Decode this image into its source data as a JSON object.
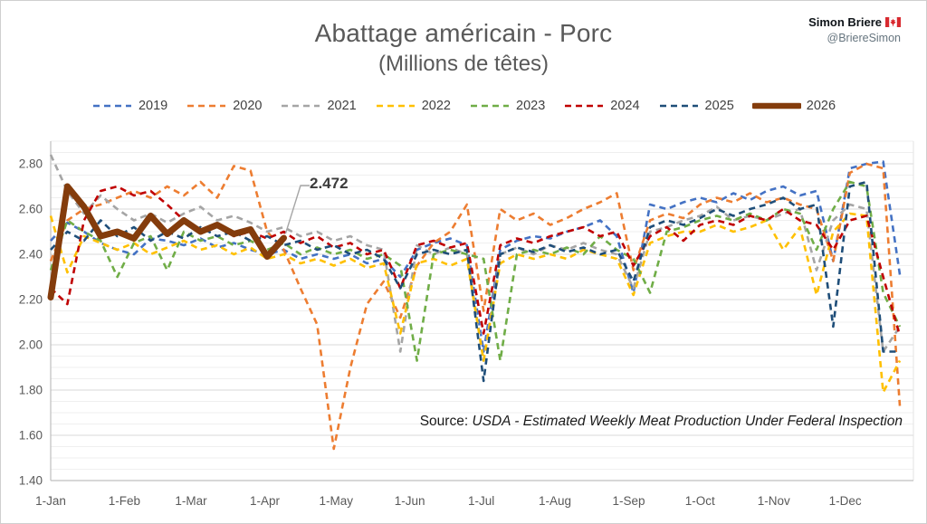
{
  "header": {
    "title": "Abattage américain - Porc",
    "subtitle": "(Millions de têtes)",
    "author": "Simon Briere",
    "handle": "@BriereSimon"
  },
  "annotation": {
    "label": "2.472"
  },
  "source": {
    "prefix": "Source: ",
    "text": "USDA - Estimated Weekly Meat Production Under Federal Inspection"
  },
  "chart_data": {
    "type": "line",
    "title": "Abattage américain - Porc (Millions de têtes)",
    "x_unit": "week_of_year",
    "ylim": [
      1.4,
      2.9
    ],
    "yticks": [
      1.4,
      1.6,
      1.8,
      2.0,
      2.2,
      2.4,
      2.6,
      2.8
    ],
    "grid_minor_step": 0.05,
    "grid": "horizontal major+minor",
    "legend_position": "top",
    "xticks": [
      {
        "label": "1-Jan",
        "day": 1
      },
      {
        "label": "1-Feb",
        "day": 32
      },
      {
        "label": "1-Mar",
        "day": 60
      },
      {
        "label": "1-Apr",
        "day": 91
      },
      {
        "label": "1-May",
        "day": 121
      },
      {
        "label": "1-Jun",
        "day": 152
      },
      {
        "label": "1-Jul",
        "day": 182
      },
      {
        "label": "1-Aug",
        "day": 213
      },
      {
        "label": "1-Sep",
        "day": 244
      },
      {
        "label": "1-Oct",
        "day": 274
      },
      {
        "label": "1-Nov",
        "day": 305
      },
      {
        "label": "1-Dec",
        "day": 335
      }
    ],
    "series": [
      {
        "name": "2019",
        "color": "#4472C4",
        "dash": "7 5",
        "width": 2.6,
        "values": [
          2.46,
          2.54,
          2.5,
          2.45,
          2.42,
          2.4,
          2.47,
          2.46,
          2.44,
          2.47,
          2.43,
          2.45,
          2.42,
          2.4,
          2.42,
          2.38,
          2.4,
          2.38,
          2.4,
          2.36,
          2.38,
          2.3,
          2.42,
          2.45,
          2.47,
          2.44,
          1.97,
          2.42,
          2.46,
          2.48,
          2.47,
          2.5,
          2.52,
          2.55,
          2.48,
          2.23,
          2.62,
          2.6,
          2.63,
          2.65,
          2.63,
          2.67,
          2.64,
          2.68,
          2.7,
          2.66,
          2.68,
          2.37,
          2.78,
          2.8,
          2.81,
          2.31
        ]
      },
      {
        "name": "2020",
        "color": "#ED7D31",
        "dash": "7 5",
        "width": 2.6,
        "values": [
          2.37,
          2.55,
          2.6,
          2.62,
          2.65,
          2.68,
          2.65,
          2.7,
          2.66,
          2.72,
          2.65,
          2.79,
          2.77,
          2.5,
          2.42,
          2.25,
          2.09,
          1.54,
          1.9,
          2.18,
          2.28,
          2.12,
          2.35,
          2.45,
          2.5,
          2.62,
          2.15,
          2.6,
          2.55,
          2.58,
          2.53,
          2.56,
          2.6,
          2.63,
          2.67,
          2.33,
          2.55,
          2.58,
          2.56,
          2.62,
          2.65,
          2.63,
          2.67,
          2.63,
          2.65,
          2.62,
          2.6,
          2.37,
          2.76,
          2.8,
          2.78,
          1.73
        ]
      },
      {
        "name": "2021",
        "color": "#A5A5A5",
        "dash": "7 5",
        "width": 2.6,
        "values": [
          2.84,
          2.68,
          2.58,
          2.66,
          2.6,
          2.55,
          2.58,
          2.54,
          2.58,
          2.61,
          2.55,
          2.57,
          2.54,
          2.5,
          2.52,
          2.48,
          2.5,
          2.46,
          2.48,
          2.44,
          2.42,
          1.97,
          2.44,
          2.4,
          2.43,
          2.4,
          1.93,
          2.4,
          2.43,
          2.4,
          2.44,
          2.42,
          2.45,
          2.42,
          2.4,
          2.25,
          2.5,
          2.52,
          2.55,
          2.57,
          2.61,
          2.55,
          2.57,
          2.55,
          2.58,
          2.6,
          2.33,
          2.55,
          2.62,
          2.6,
          1.97,
          2.08
        ]
      },
      {
        "name": "2022",
        "color": "#FFC000",
        "dash": "7 5",
        "width": 2.6,
        "values": [
          2.57,
          2.32,
          2.48,
          2.45,
          2.42,
          2.45,
          2.4,
          2.43,
          2.46,
          2.42,
          2.44,
          2.4,
          2.43,
          2.38,
          2.4,
          2.36,
          2.38,
          2.35,
          2.38,
          2.34,
          2.36,
          2.05,
          2.36,
          2.38,
          2.35,
          2.38,
          1.93,
          2.36,
          2.4,
          2.38,
          2.4,
          2.38,
          2.42,
          2.4,
          2.38,
          2.22,
          2.45,
          2.48,
          2.5,
          2.5,
          2.53,
          2.5,
          2.52,
          2.55,
          2.42,
          2.52,
          2.22,
          2.5,
          2.58,
          2.57,
          1.79,
          1.93
        ]
      },
      {
        "name": "2023",
        "color": "#70AD47",
        "dash": "7 5",
        "width": 2.6,
        "values": [
          2.33,
          2.55,
          2.5,
          2.46,
          2.3,
          2.45,
          2.48,
          2.33,
          2.5,
          2.46,
          2.48,
          2.44,
          2.46,
          2.42,
          2.45,
          2.4,
          2.43,
          2.4,
          2.42,
          2.38,
          2.4,
          2.35,
          1.93,
          2.4,
          2.42,
          2.4,
          2.38,
          1.93,
          2.4,
          2.42,
          2.4,
          2.43,
          2.4,
          2.48,
          2.42,
          2.38,
          2.23,
          2.5,
          2.52,
          2.55,
          2.57,
          2.55,
          2.58,
          2.55,
          2.6,
          2.58,
          2.42,
          2.6,
          2.72,
          2.7,
          2.23,
          2.08
        ]
      },
      {
        "name": "2024",
        "color": "#C00000",
        "dash": "7 5",
        "width": 2.6,
        "values": [
          2.25,
          2.18,
          2.55,
          2.68,
          2.7,
          2.66,
          2.68,
          2.62,
          2.55,
          2.5,
          2.53,
          2.48,
          2.5,
          2.47,
          2.5,
          2.45,
          2.48,
          2.43,
          2.45,
          2.4,
          2.42,
          2.25,
          2.44,
          2.46,
          2.43,
          2.45,
          2.05,
          2.44,
          2.47,
          2.45,
          2.48,
          2.5,
          2.52,
          2.48,
          2.5,
          2.35,
          2.48,
          2.52,
          2.46,
          2.53,
          2.55,
          2.53,
          2.57,
          2.55,
          2.6,
          2.55,
          2.53,
          2.42,
          2.55,
          2.57,
          2.3,
          2.04
        ]
      },
      {
        "name": "2025",
        "color": "#1F4E79",
        "dash": "7 5",
        "width": 2.6,
        "values": [
          2.42,
          2.5,
          2.46,
          2.55,
          2.48,
          2.52,
          2.46,
          2.5,
          2.47,
          2.52,
          2.48,
          2.5,
          2.46,
          2.48,
          2.44,
          2.46,
          2.42,
          2.44,
          2.4,
          2.42,
          2.38,
          2.25,
          2.4,
          2.42,
          2.4,
          2.42,
          1.84,
          2.4,
          2.43,
          2.41,
          2.44,
          2.41,
          2.43,
          2.4,
          2.42,
          2.28,
          2.52,
          2.55,
          2.53,
          2.56,
          2.6,
          2.57,
          2.6,
          2.62,
          2.65,
          2.6,
          2.62,
          2.08,
          2.7,
          2.72,
          1.97,
          1.97
        ]
      },
      {
        "name": "2026",
        "color": "#843C0C",
        "dash": "",
        "width": 7,
        "values": [
          2.21,
          2.7,
          2.61,
          2.48,
          2.5,
          2.47,
          2.57,
          2.49,
          2.55,
          2.5,
          2.53,
          2.49,
          2.51,
          2.39,
          2.472
        ]
      }
    ]
  }
}
